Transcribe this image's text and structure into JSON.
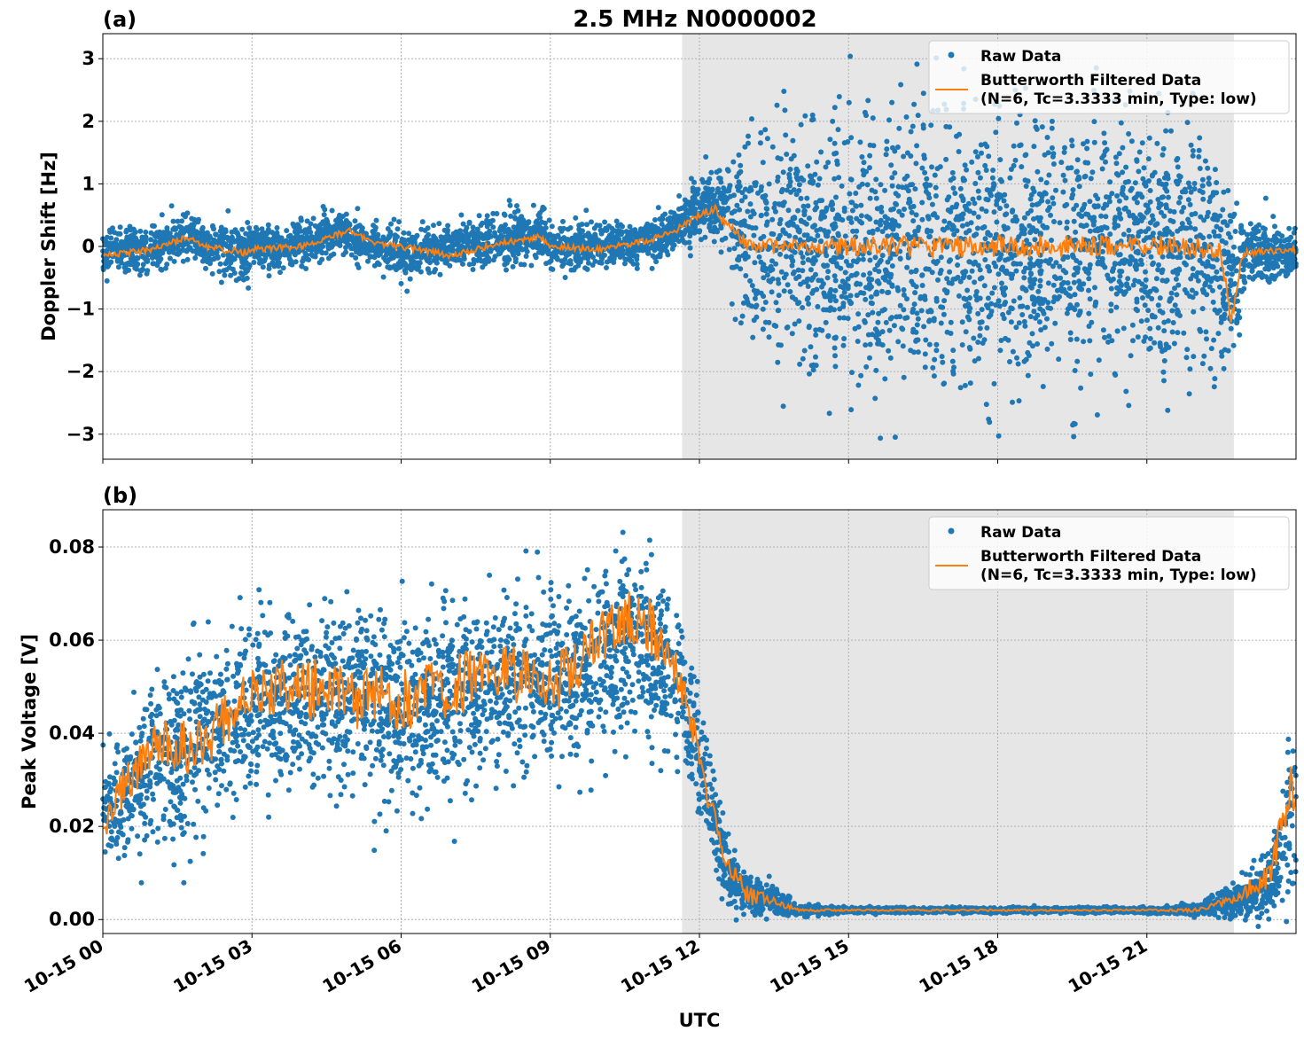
{
  "figure": {
    "title": "2.5 MHz N0000002",
    "xlabel": "UTC",
    "x_tick_labels": [
      "10-15 00",
      "10-15 03",
      "10-15 06",
      "10-15 09",
      "10-15 12",
      "10-15 15",
      "10-15 18",
      "10-15 21"
    ],
    "legend": {
      "raw_label": "Raw Data",
      "filtered_label_line1": "Butterworth Filtered Data",
      "filtered_label_line2": "(N=6, Tc=3.3333 min, Type: low)"
    }
  },
  "colors": {
    "raw": "#1f77b4",
    "filtered": "#ff7f0e",
    "shade": "#e6e6e6",
    "grid": "#b0b0b0"
  },
  "chart_data": [
    {
      "panel_label": "(a)",
      "type": "scatter",
      "ylabel": "Doppler Shift [Hz]",
      "x_range_hours": [
        0,
        24
      ],
      "ylim": [
        -3.4,
        3.4
      ],
      "y_ticks": [
        -3,
        -2,
        -1,
        0,
        1,
        2,
        3
      ],
      "y_tick_labels": [
        "−3",
        "−2",
        "−1",
        "0",
        "1",
        "2",
        "3"
      ],
      "shaded_interval_hours": [
        11.65,
        22.75
      ],
      "grid": true,
      "legend_position": "top-right",
      "series": [
        {
          "name": "Raw Data",
          "style": "points",
          "x_hours": [
            0,
            1,
            1.7,
            2,
            2.9,
            3,
            4,
            4.95,
            5,
            6,
            7,
            8,
            8.8,
            9,
            10,
            11,
            11.5,
            12,
            12.5,
            13,
            14,
            15,
            16,
            17,
            18,
            19,
            20,
            21,
            22,
            22.7,
            23,
            24
          ],
          "center": [
            -0.1,
            -0.05,
            0.2,
            0,
            -0.1,
            0,
            0,
            0.3,
            0.1,
            -0.1,
            0,
            0.1,
            0.2,
            0,
            0,
            0.1,
            0.3,
            0.6,
            0.6,
            0,
            0,
            0,
            0,
            0,
            0,
            0,
            0,
            0,
            0,
            -0.5,
            -0.1,
            -0.1
          ],
          "spread": [
            0.3,
            0.3,
            0.35,
            0.3,
            0.45,
            0.3,
            0.3,
            0.3,
            0.3,
            0.3,
            0.3,
            0.35,
            0.4,
            0.3,
            0.3,
            0.3,
            0.35,
            0.4,
            0.6,
            1.5,
            1.7,
            1.8,
            1.9,
            1.9,
            1.9,
            1.9,
            1.9,
            1.8,
            1.7,
            1.2,
            0.5,
            0.3
          ]
        },
        {
          "name": "Butterworth Filtered Data",
          "style": "line",
          "x_hours": [
            0,
            0.5,
            1,
            1.7,
            2,
            2.9,
            3,
            4,
            4.95,
            5.5,
            6,
            7,
            8,
            8.8,
            9,
            10,
            11,
            11.5,
            12,
            12.3,
            12.6,
            13,
            14,
            15,
            16,
            17,
            18,
            19,
            20,
            21,
            22,
            22.5,
            22.7,
            22.9,
            23,
            24
          ],
          "y": [
            -0.15,
            -0.1,
            -0.05,
            0.15,
            0,
            -0.1,
            -0.05,
            0,
            0.25,
            0.05,
            0,
            -0.15,
            0.05,
            0.15,
            0,
            -0.05,
            0.1,
            0.25,
            0.5,
            0.6,
            0.3,
            0,
            0,
            0,
            0,
            0,
            0,
            0,
            0,
            0,
            0,
            -0.1,
            -1.2,
            -0.2,
            -0.1,
            -0.05
          ],
          "noise": [
            0.05,
            0.05,
            0.05,
            0.05,
            0.05,
            0.06,
            0.05,
            0.05,
            0.05,
            0.05,
            0.05,
            0.05,
            0.05,
            0.06,
            0.05,
            0.05,
            0.05,
            0.05,
            0.06,
            0.08,
            0.08,
            0.12,
            0.16,
            0.16,
            0.17,
            0.17,
            0.18,
            0.18,
            0.17,
            0.17,
            0.16,
            0.15,
            0.1,
            0.05,
            0.05,
            0.05
          ]
        }
      ]
    },
    {
      "panel_label": "(b)",
      "type": "scatter",
      "ylabel": "Peak Voltage [V]",
      "x_range_hours": [
        0,
        24
      ],
      "ylim": [
        -0.003,
        0.088
      ],
      "y_ticks": [
        0,
        0.02,
        0.04,
        0.06,
        0.08
      ],
      "y_tick_labels": [
        "0.00",
        "0.02",
        "0.04",
        "0.06",
        "0.08"
      ],
      "shaded_interval_hours": [
        11.65,
        22.75
      ],
      "grid": true,
      "legend_position": "top-right",
      "series": [
        {
          "name": "Raw Data",
          "style": "points",
          "x_hours": [
            0,
            0.5,
            1,
            2,
            3,
            4,
            5,
            6,
            7,
            8,
            9,
            10,
            10.5,
            11,
            11.5,
            12,
            12.5,
            13,
            13.5,
            14,
            15,
            18,
            21,
            22,
            22.7,
            23,
            23.5,
            24
          ],
          "center": [
            0.022,
            0.028,
            0.033,
            0.038,
            0.045,
            0.048,
            0.048,
            0.045,
            0.047,
            0.05,
            0.05,
            0.056,
            0.06,
            0.058,
            0.052,
            0.035,
            0.012,
            0.005,
            0.004,
            0.002,
            0.002,
            0.002,
            0.002,
            0.002,
            0.004,
            0.005,
            0.008,
            0.025
          ],
          "spread": [
            0.011,
            0.013,
            0.015,
            0.016,
            0.016,
            0.017,
            0.017,
            0.017,
            0.017,
            0.017,
            0.017,
            0.017,
            0.017,
            0.016,
            0.015,
            0.012,
            0.007,
            0.004,
            0.003,
            0.001,
            0.0005,
            0.0005,
            0.0005,
            0.001,
            0.003,
            0.004,
            0.006,
            0.02
          ]
        },
        {
          "name": "Butterworth Filtered Data",
          "style": "line",
          "x_hours": [
            0,
            0.5,
            1,
            2,
            3,
            4,
            5,
            6,
            7,
            8,
            9,
            10,
            10.5,
            11,
            11.5,
            12,
            12.5,
            13,
            13.5,
            14,
            15,
            18,
            21,
            22,
            22.7,
            23,
            23.5,
            23.9,
            24
          ],
          "y": [
            0.02,
            0.03,
            0.037,
            0.037,
            0.05,
            0.05,
            0.048,
            0.047,
            0.05,
            0.053,
            0.05,
            0.06,
            0.065,
            0.063,
            0.055,
            0.035,
            0.012,
            0.005,
            0.004,
            0.002,
            0.002,
            0.002,
            0.002,
            0.002,
            0.004,
            0.006,
            0.01,
            0.03,
            0.025
          ],
          "noise": [
            0.003,
            0.005,
            0.006,
            0.006,
            0.006,
            0.007,
            0.007,
            0.007,
            0.007,
            0.007,
            0.007,
            0.006,
            0.006,
            0.006,
            0.005,
            0.004,
            0.003,
            0.002,
            0.001,
            0.0003,
            0.0002,
            0.0002,
            0.0002,
            0.0004,
            0.001,
            0.002,
            0.003,
            0.006,
            0.006
          ]
        }
      ]
    }
  ]
}
